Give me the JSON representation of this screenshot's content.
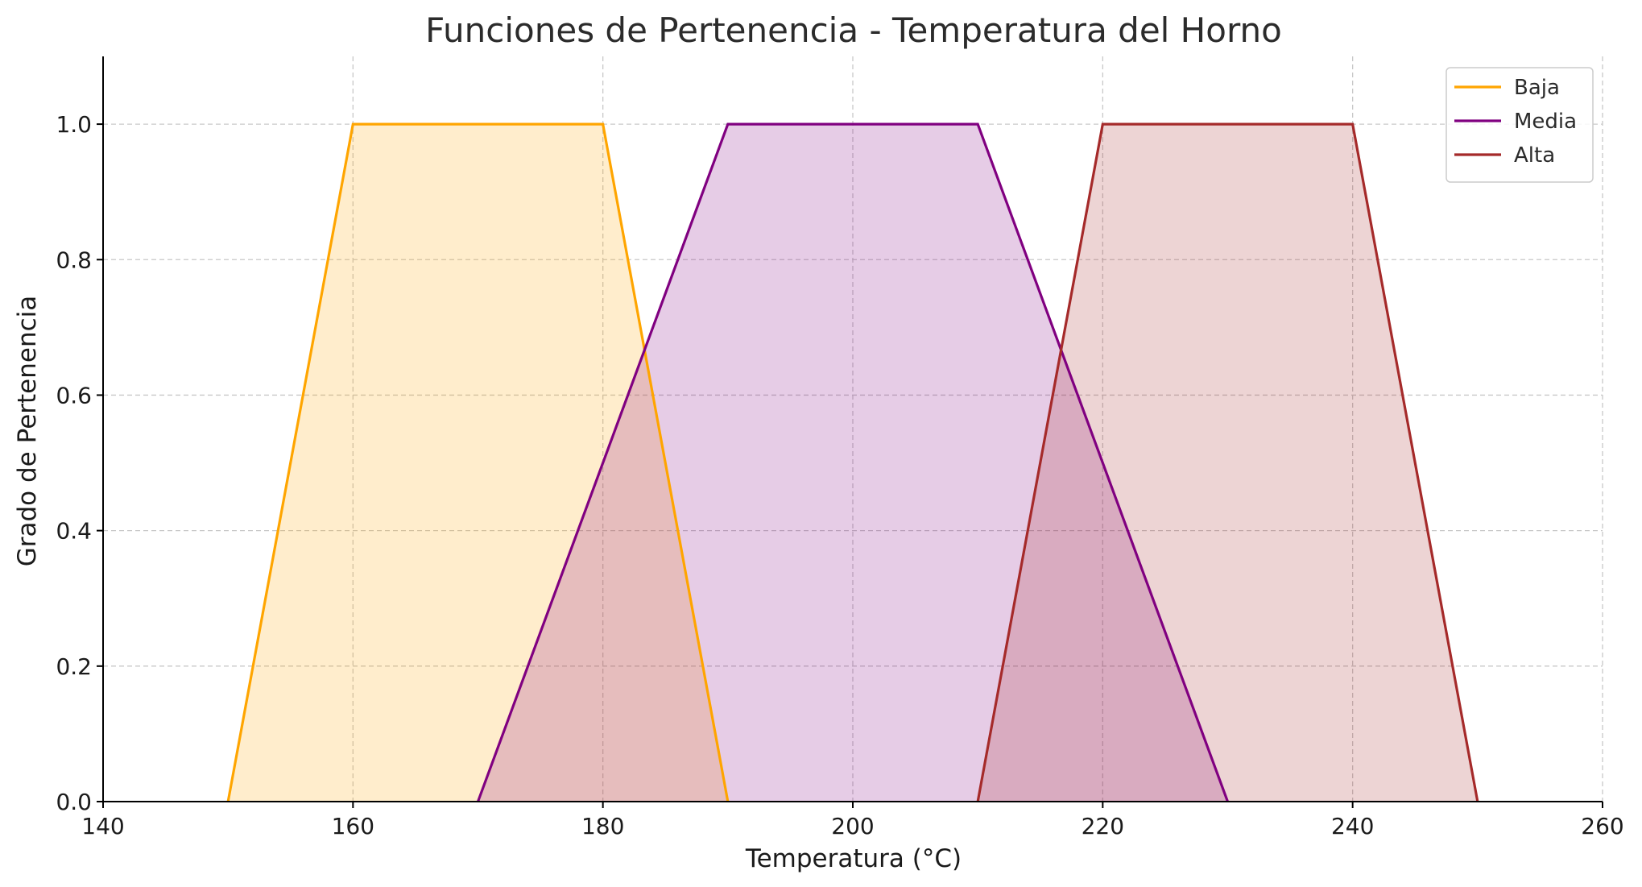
{
  "chart_data": {
    "type": "area",
    "title": "Funciones de Pertenencia - Temperatura del Horno",
    "xlabel": "Temperatura (°C)",
    "ylabel": "Grado de Pertenencia",
    "xlim": [
      140,
      260
    ],
    "ylim": [
      0,
      1.1
    ],
    "xticks": [
      140,
      160,
      180,
      200,
      220,
      240,
      260
    ],
    "xtick_labels": [
      "140",
      "160",
      "180",
      "200",
      "220",
      "240",
      "260"
    ],
    "yticks": [
      0,
      0.2,
      0.4,
      0.6,
      0.8,
      1.0
    ],
    "ytick_labels": [
      "0.0",
      "0.2",
      "0.4",
      "0.6",
      "0.8",
      "1.0"
    ],
    "grid": true,
    "legend_position": "top-right",
    "series": [
      {
        "name": "Baja",
        "color": "#FFA500",
        "fill_opacity": 0.2,
        "x": [
          150,
          160,
          180,
          190
        ],
        "y": [
          0,
          1,
          1,
          0
        ]
      },
      {
        "name": "Media",
        "color": "#800080",
        "fill_opacity": 0.2,
        "x": [
          170,
          190,
          210,
          230
        ],
        "y": [
          0,
          1,
          1,
          0
        ]
      },
      {
        "name": "Alta",
        "color": "#A52A2A",
        "fill_opacity": 0.2,
        "x": [
          210,
          220,
          240,
          250
        ],
        "y": [
          0,
          1,
          1,
          0
        ]
      }
    ]
  }
}
